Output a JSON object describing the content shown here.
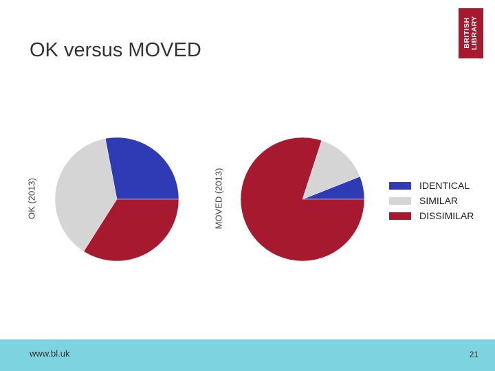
{
  "slide": {
    "title": "OK versus MOVED",
    "page_number": "21",
    "footer_url": "www.bl.uk"
  },
  "logo": {
    "lines": [
      "BRITISH",
      "LIBRARY"
    ],
    "color": "#a6192e"
  },
  "colors": {
    "identical": "#2e3bb5",
    "similar": "#d6d5d6",
    "dissimilar": "#a6192e",
    "footer_band": "#7ed3e0"
  },
  "chart_data": [
    {
      "type": "pie",
      "label": "OK (2013)",
      "categories": [
        "IDENTICAL",
        "SIMILAR",
        "DISSIMILAR"
      ],
      "values": [
        28,
        38,
        34
      ],
      "colors": [
        "#2e3bb5",
        "#d6d5d6",
        "#a6192e"
      ]
    },
    {
      "type": "pie",
      "label": "MOVED (2013)",
      "categories": [
        "IDENTICAL",
        "SIMILAR",
        "DISSIMILAR"
      ],
      "values": [
        6,
        14,
        80
      ],
      "colors": [
        "#2e3bb5",
        "#d6d5d6",
        "#a6192e"
      ]
    }
  ],
  "legend": {
    "placement": "right",
    "items": [
      {
        "label": "IDENTICAL",
        "color": "#2e3bb5"
      },
      {
        "label": "SIMILAR",
        "color": "#d6d5d6"
      },
      {
        "label": "DISSIMILAR",
        "color": "#a6192e"
      }
    ]
  }
}
